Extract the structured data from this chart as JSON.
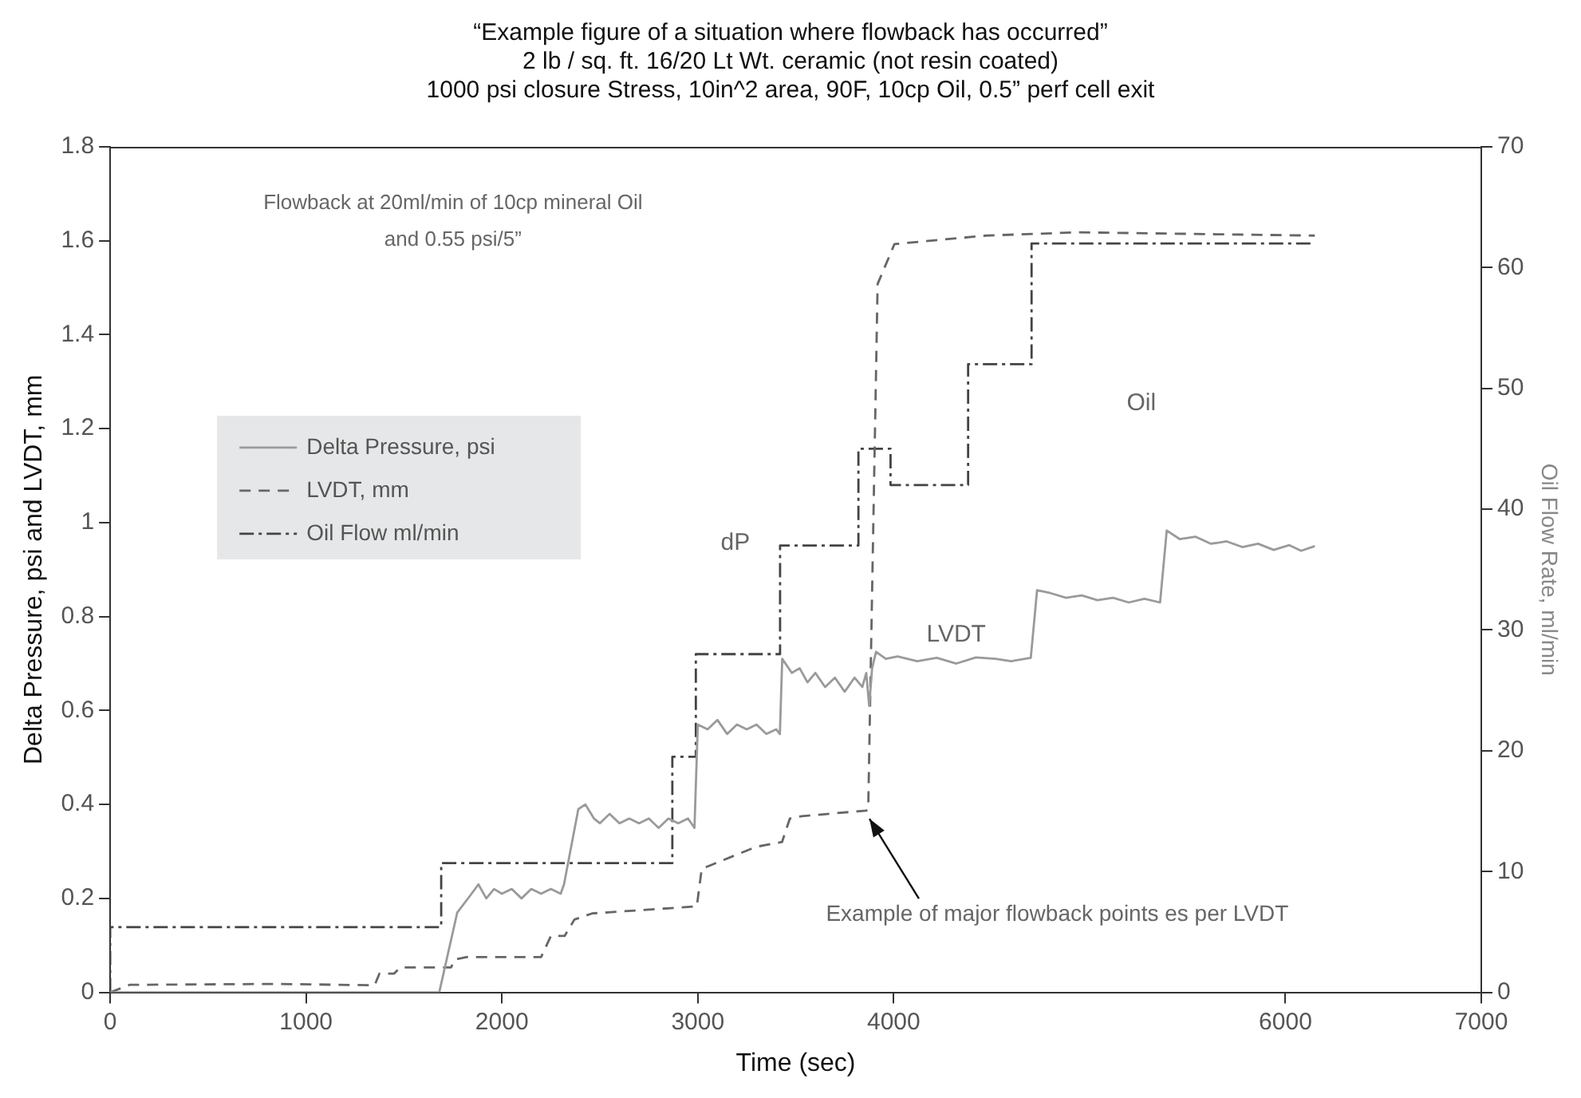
{
  "chart_data": {
    "type": "line",
    "title": "“Example figure of a situation where flowback has occurred”\n2 lb / sq. ft. 16/20 Lt Wt. ceramic (not resin coated)\n1000 psi closure Stress, 10in^2 area, 90F, 10cp Oil, 0.5” perf cell exit",
    "xlabel": "Time (sec)",
    "ylabel": "Delta Pressure, psi and LVDT, mm",
    "y2label": "Oil Flow Rate, ml/min",
    "xlim": [
      0,
      7000
    ],
    "xticks": [
      0,
      1000,
      2000,
      3000,
      4000,
      6000,
      7000
    ],
    "ylim": [
      0,
      1.8
    ],
    "yticks": [
      0,
      0.2,
      0.4,
      0.6,
      0.8,
      1,
      1.2,
      1.4,
      1.6,
      1.8
    ],
    "y2lim": [
      0,
      70
    ],
    "y2ticks": [
      0,
      10,
      20,
      30,
      40,
      50,
      60,
      70
    ],
    "legend": "left",
    "marker": "none",
    "series": [
      {
        "name": "Delta Pressure, psi",
        "color": "#9a9a9a",
        "line_style": "solid",
        "x": [
          0,
          1680,
          1772,
          1845,
          1880,
          1920,
          1960,
          2000,
          2050,
          2100,
          2150,
          2200,
          2250,
          2300,
          2317,
          2390,
          2426,
          2470,
          2500,
          2550,
          2600,
          2650,
          2700,
          2750,
          2800,
          2850,
          2900,
          2950,
          2983,
          3000,
          3050,
          3100,
          3150,
          3200,
          3250,
          3300,
          3350,
          3400,
          3419,
          3431,
          3480,
          3520,
          3560,
          3600,
          3650,
          3700,
          3750,
          3800,
          3840,
          3860,
          3875,
          3890,
          3910,
          3960,
          4020,
          4120,
          4220,
          4320,
          4420,
          4520,
          4600,
          4700,
          4732,
          4800,
          4880,
          4960,
          5040,
          5120,
          5200,
          5280,
          5360,
          5394,
          5460,
          5540,
          5620,
          5700,
          5780,
          5860,
          5940,
          6020,
          6080,
          6150
        ],
        "values": [
          0,
          0,
          0.17,
          0.21,
          0.23,
          0.2,
          0.22,
          0.21,
          0.22,
          0.2,
          0.22,
          0.21,
          0.22,
          0.21,
          0.23,
          0.39,
          0.4,
          0.37,
          0.36,
          0.38,
          0.36,
          0.37,
          0.36,
          0.37,
          0.35,
          0.37,
          0.36,
          0.37,
          0.35,
          0.57,
          0.56,
          0.58,
          0.55,
          0.57,
          0.56,
          0.57,
          0.55,
          0.56,
          0.55,
          0.71,
          0.68,
          0.69,
          0.66,
          0.68,
          0.65,
          0.67,
          0.64,
          0.67,
          0.65,
          0.68,
          0.61,
          0.69,
          0.725,
          0.71,
          0.715,
          0.705,
          0.712,
          0.7,
          0.713,
          0.71,
          0.705,
          0.712,
          0.856,
          0.85,
          0.84,
          0.845,
          0.835,
          0.84,
          0.83,
          0.838,
          0.83,
          0.983,
          0.965,
          0.97,
          0.955,
          0.96,
          0.948,
          0.955,
          0.942,
          0.952,
          0.94,
          0.95
        ]
      },
      {
        "name": "LVDT, mm",
        "color": "#666666",
        "line_style": "dashed",
        "x": [
          0,
          100,
          850,
          1350,
          1375,
          1450,
          1480,
          1740,
          1760,
          1820,
          2200,
          2250,
          2320,
          2370,
          2460,
          2995,
          3020,
          3180,
          3300,
          3430,
          3470,
          3530,
          3860,
          3870,
          3918,
          4004,
          4470,
          4938,
          6150
        ],
        "values": [
          0,
          0.016,
          0.018,
          0.015,
          0.04,
          0.04,
          0.053,
          0.053,
          0.07,
          0.075,
          0.075,
          0.12,
          0.12,
          0.155,
          0.168,
          0.183,
          0.263,
          0.29,
          0.31,
          0.32,
          0.37,
          0.375,
          0.387,
          0.39,
          1.508,
          1.593,
          1.611,
          1.618,
          1.611
        ]
      },
      {
        "name": "Oil Flow ml/min",
        "color": "#444444",
        "type": "step",
        "axis": "y2",
        "line_style": "dashdot",
        "x": [
          0,
          1690,
          2870,
          2990,
          3420,
          3820,
          3984,
          4380,
          4704,
          5338,
          6150
        ],
        "values": [
          0,
          5.4,
          10.7,
          19.5,
          28,
          37,
          45,
          42,
          52,
          62,
          62
        ]
      }
    ],
    "annotations": [
      "Flowback at 20ml/min of 10cp mineral Oil\nand 0.55 psi/5”",
      "dP",
      "LVDT",
      "Oil",
      {
        "text": "Example of major flowback points es per LVDT",
        "x": 3860,
        "y": 0.39
      }
    ]
  }
}
